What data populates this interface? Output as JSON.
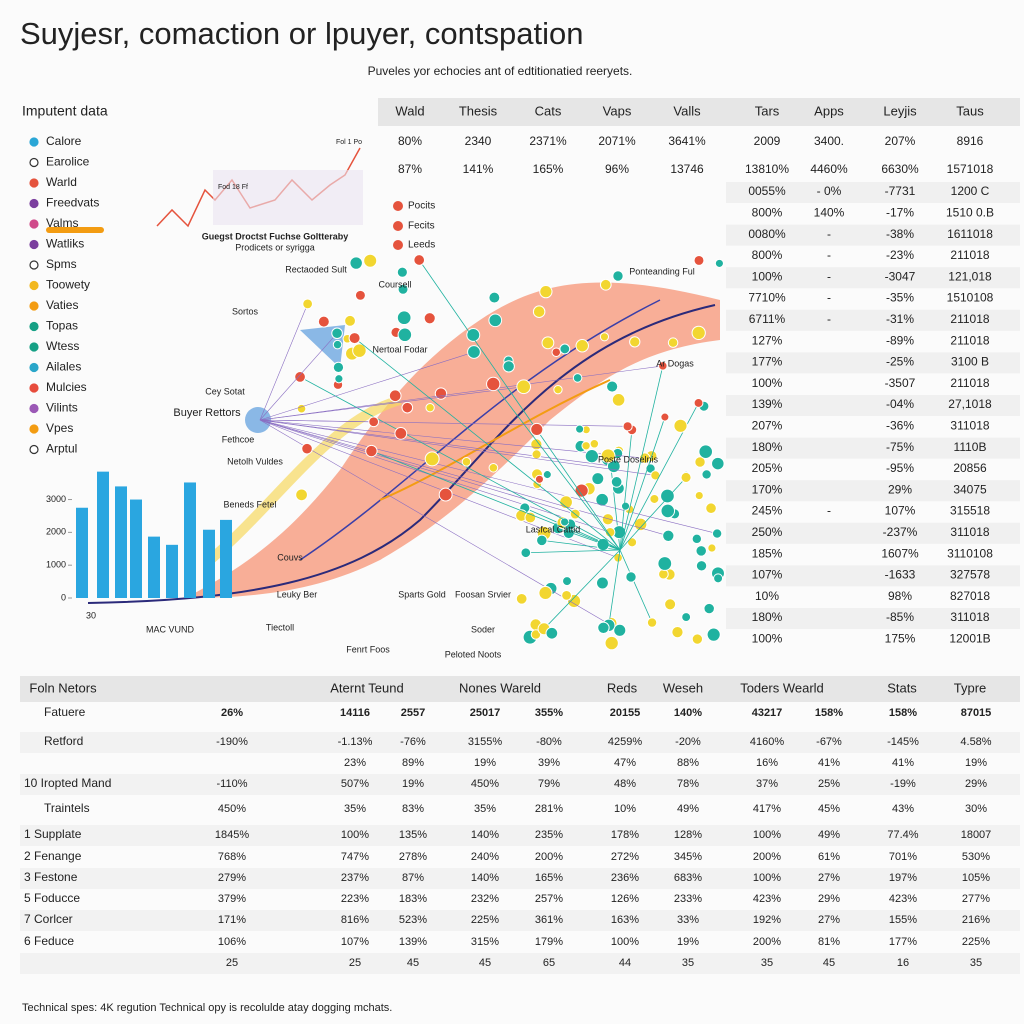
{
  "header": {
    "title": "Suyjesr, comaction or lpuyer, contspation",
    "subtitle": "Puveles yor echocies ant of edtitionatied reeryets."
  },
  "legend": {
    "title": "Imputent data",
    "items": [
      {
        "label": "Calore",
        "color": "#2aa6d6"
      },
      {
        "label": "Earolice",
        "color": "#333333"
      },
      {
        "label": "Warld",
        "color": "#e5533d"
      },
      {
        "label": "Freedvats",
        "color": "#7b3f9e"
      },
      {
        "label": "Valms",
        "color": "#d04a8a"
      },
      {
        "label": "Watliks",
        "color": "#7b3f9e"
      },
      {
        "label": "Spms",
        "color": "#333333"
      },
      {
        "label": "Toowety",
        "color": "#f2b820"
      },
      {
        "label": "Vaties",
        "color": "#f39c12"
      },
      {
        "label": "Topas",
        "color": "#16a085"
      },
      {
        "label": "Wtess",
        "color": "#16a085"
      },
      {
        "label": "Ailales",
        "color": "#2aa6c9"
      },
      {
        "label": "Mulcies",
        "color": "#e74c3c"
      },
      {
        "label": "Vilints",
        "color": "#9b59b6"
      },
      {
        "label": "Vpes",
        "color": "#f39c12"
      },
      {
        "label": "Arptul",
        "color": "#333333"
      }
    ]
  },
  "mini_chart": {
    "title": "Guegst Droctst Fuchse Goltteraby",
    "subtitle": "Prodicets or syrigga",
    "labels": [
      "Fod 18 Ff",
      "Fol 1 Po"
    ]
  },
  "network": {
    "legend": [
      "Pocits",
      "Fecits",
      "Leeds"
    ],
    "labels": [
      "Sortos",
      "Coursell",
      "Rectaoded Sult",
      "Nertoal Fodar",
      "Cey Sotat",
      "Buyer Rettors",
      "Fethcoe",
      "Netolh Vuldes",
      "Beneds Fetel",
      "Couvs",
      "Leuky Ber",
      "Tiectoll",
      "Sparts Gold",
      "Fenrt Foos",
      "Foosan Srvier",
      "Soder",
      "Peloted Noots",
      "Lasfcal Cattid",
      "Poste Doselnis",
      "Ar Dogas",
      "Ponteanding Ful"
    ]
  },
  "bar_chart": {
    "values": [
      2750,
      3850,
      3400,
      3000,
      1870,
      1620,
      3520,
      2080,
      2380
    ],
    "color": "#2aa6e0",
    "ylim": [
      0,
      3900
    ],
    "yticks": [
      0,
      1000,
      2000,
      3000
    ],
    "xlabels": [
      "30",
      "MAC VUND"
    ]
  },
  "top_table": {
    "header": [
      "Wald",
      "Thesis",
      "Cats",
      "Vaps",
      "Valls",
      "Tars",
      "Apps",
      "Leyjis",
      "Taus"
    ],
    "rows": [
      [
        "80%",
        "2340",
        "2371%",
        "2071%",
        "3641%",
        "2009",
        "3400.",
        "207%",
        "8916"
      ],
      [
        "87%",
        "141%",
        "165%",
        "96%",
        "13746",
        "13810%",
        "4460%",
        "6630%",
        "1571018"
      ]
    ]
  },
  "side_table": {
    "rows": [
      [
        "0055%",
        "- 0%",
        "-7731",
        "1200 C"
      ],
      [
        "800%",
        "140%",
        "-17%",
        "1510 0.B"
      ],
      [
        "0080%",
        "-",
        "-38%",
        "1611018"
      ],
      [
        "800%",
        "-",
        "-23%",
        "211018"
      ],
      [
        "100%",
        "-",
        "-3047",
        "121,018"
      ],
      [
        "7710%",
        "-",
        "-35%",
        "1510108"
      ],
      [
        "6711%",
        "-",
        "-31%",
        "211018"
      ],
      [
        "127%",
        null,
        "-89%",
        "211018"
      ],
      [
        "177%",
        null,
        "-25%",
        "3100 B"
      ],
      [
        "100%",
        null,
        "-3507",
        "211018"
      ],
      [
        "139%",
        null,
        "-04%",
        "27,1018"
      ],
      [
        "207%",
        null,
        "-36%",
        "311018"
      ],
      [
        "180%",
        null,
        "-75%",
        "1110B"
      ],
      [
        "205%",
        null,
        "-95%",
        "20856"
      ],
      [
        "170%",
        null,
        "29%",
        "34075"
      ],
      [
        "245%",
        "-",
        "107%",
        "315518"
      ],
      [
        "250%",
        null,
        "-237%",
        "311018"
      ],
      [
        "185%",
        null,
        "1607%",
        "3110108"
      ],
      [
        "107%",
        null,
        "-1633",
        "327578"
      ],
      [
        "10%",
        null,
        "98%",
        "827018"
      ],
      [
        "180%",
        null,
        "-85%",
        "311018"
      ],
      [
        "100%",
        null,
        "175%",
        "12001B"
      ]
    ]
  },
  "bottom_table": {
    "header": [
      "Foln Netors",
      "Aternt Teund",
      "Nones Wareld",
      "Reds",
      "Weseh",
      "Toders Wearld",
      "Stats",
      "Typre"
    ],
    "rows": [
      [
        "Fatuere",
        "26%",
        "14116",
        "2557",
        "25017",
        "355%",
        "20155",
        "140%",
        "43217",
        "158%",
        "158%",
        "87015"
      ],
      [
        "Retford",
        "-190%",
        "-1.13%",
        "-76%",
        "3155%",
        "-80%",
        "4259%",
        "-20%",
        "4160%",
        "-67%",
        "-145%",
        "4.58%"
      ],
      [
        null,
        null,
        "23%",
        "89%",
        "19%",
        "39%",
        "47%",
        "88%",
        "16%",
        "41%",
        "41%",
        "19%"
      ],
      [
        "10 Iropted Mand",
        "-110%",
        "507%",
        "19%",
        "450%",
        "79%",
        "48%",
        "78%",
        "37%",
        "25%",
        "-19%",
        "29%"
      ],
      [
        "Traintels",
        "450%",
        "35%",
        "83%",
        "35%",
        "281%",
        "10%",
        "49%",
        "417%",
        "45%",
        "43%",
        "30%"
      ],
      [
        "1 Supplate",
        "1845%",
        "100%",
        "135%",
        "140%",
        "235%",
        "178%",
        "128%",
        "100%",
        "49%",
        "77.4%",
        "18007"
      ],
      [
        "2 Fenange",
        "768%",
        "747%",
        "278%",
        "240%",
        "200%",
        "272%",
        "345%",
        "200%",
        "61%",
        "701%",
        "530%"
      ],
      [
        "3 Festone",
        "279%",
        "237%",
        "87%",
        "140%",
        "165%",
        "236%",
        "683%",
        "100%",
        "27%",
        "197%",
        "105%"
      ],
      [
        "5 Foducce",
        "379%",
        "223%",
        "183%",
        "232%",
        "257%",
        "126%",
        "233%",
        "423%",
        "29%",
        "423%",
        "277%"
      ],
      [
        "7 Corlcer",
        "171%",
        "816%",
        "523%",
        "225%",
        "361%",
        "163%",
        "33%",
        "192%",
        "27%",
        "155%",
        "216%"
      ],
      [
        "6 Feduce",
        "106%",
        "107%",
        "139%",
        "315%",
        "179%",
        "100%",
        "19%",
        "200%",
        "81%",
        "177%",
        "225%"
      ],
      [
        null,
        "25",
        "25",
        "45",
        "45",
        "65",
        "44",
        "35",
        "35",
        "45",
        "16",
        "35"
      ]
    ]
  },
  "footer": "Technical spes: 4K regution Technical opy is recolulde atay dogging mchats."
}
